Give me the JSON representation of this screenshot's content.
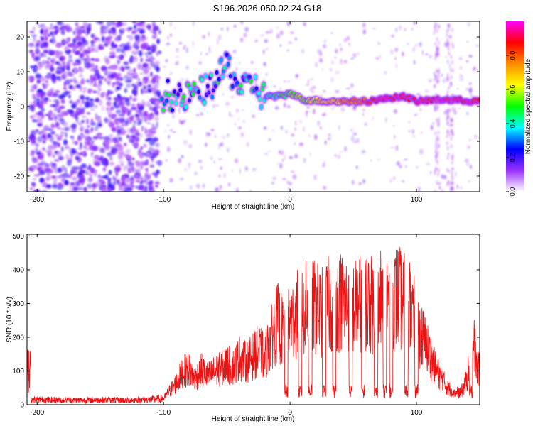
{
  "figure": {
    "title": "S196.2026.050.02.24.G18"
  },
  "chart_data": [
    {
      "type": "heatmap",
      "title": "S196.2026.050.02.24.G18",
      "xlabel": "Height of straight line (km)",
      "ylabel": "Frequency (Hz)",
      "xlim": [
        -208,
        150
      ],
      "ylim": [
        -24.5,
        24.5
      ],
      "x_ticks": [
        -200,
        -100,
        0,
        100
      ],
      "x_tick_labels": [
        "-200",
        "-100",
        "0",
        "100"
      ],
      "y_ticks": [
        -20,
        -10,
        0,
        10,
        20
      ],
      "y_tick_labels": [
        "-20",
        "-10",
        "0",
        "10",
        "20"
      ],
      "colorbar": {
        "label": "Normalized spectral amplitude",
        "range": [
          0,
          1
        ],
        "ticks": [
          0.0,
          0.2,
          0.4,
          0.6,
          0.8
        ],
        "tick_labels": [
          "0.0",
          "0.2",
          "0.4",
          "0.6",
          "0.8"
        ],
        "colors": [
          "#ffffff",
          "#9b30ff",
          "#0000ff",
          "#00ffff",
          "#00ff00",
          "#ffff00",
          "#ff8c00",
          "#ff0000",
          "#ff00ff"
        ]
      },
      "features": {
        "noise_region_x": [
          -205,
          -103
        ],
        "track": [
          {
            "x": -100,
            "y": 5
          },
          {
            "x": -95,
            "y": 3
          },
          {
            "x": -85,
            "y": 2
          },
          {
            "x": -75,
            "y": 4
          },
          {
            "x": -65,
            "y": 5
          },
          {
            "x": -55,
            "y": 9
          },
          {
            "x": -50,
            "y": 13
          },
          {
            "x": -45,
            "y": 8
          },
          {
            "x": -40,
            "y": 6
          },
          {
            "x": -35,
            "y": 5
          },
          {
            "x": -30,
            "y": 7
          },
          {
            "x": -22,
            "y": 3
          },
          {
            "x": -15,
            "y": 3
          },
          {
            "x": -5,
            "y": 3
          },
          {
            "x": 0,
            "y": 4
          },
          {
            "x": 10,
            "y": 2
          },
          {
            "x": 30,
            "y": 1.5
          },
          {
            "x": 60,
            "y": 1.5
          },
          {
            "x": 80,
            "y": 2.5
          },
          {
            "x": 90,
            "y": 3
          },
          {
            "x": 100,
            "y": 1.5
          },
          {
            "x": 120,
            "y": 2
          },
          {
            "x": 150,
            "y": 1.5
          }
        ]
      }
    },
    {
      "type": "line",
      "xlabel": "Height of straight line (km)",
      "ylabel": "SNR (10 * v/v)",
      "xlim": [
        -208,
        150
      ],
      "ylim": [
        0,
        505
      ],
      "x_ticks": [
        -200,
        -100,
        0,
        100
      ],
      "x_tick_labels": [
        "-200",
        "-100",
        "0",
        "100"
      ],
      "y_ticks": [
        0,
        100,
        200,
        300,
        400,
        500
      ],
      "y_tick_labels": [
        "0",
        "100",
        "200",
        "300",
        "400",
        "500"
      ],
      "series": [
        {
          "name": "SNR",
          "color": "#ee1111",
          "x": [
            -205,
            -190,
            -170,
            -150,
            -130,
            -110,
            -100,
            -95,
            -90,
            -85,
            -80,
            -75,
            -70,
            -65,
            -60,
            -55,
            -50,
            -45,
            -40,
            -35,
            -30,
            -25,
            -20,
            -15,
            -10,
            -5,
            0,
            5,
            10,
            15,
            20,
            25,
            30,
            35,
            40,
            45,
            50,
            55,
            60,
            65,
            70,
            75,
            80,
            85,
            90,
            95,
            100,
            105,
            110,
            115,
            120,
            125,
            130,
            135,
            140,
            145,
            148
          ],
          "y": [
            20,
            18,
            17,
            18,
            17,
            20,
            25,
            60,
            90,
            140,
            150,
            110,
            150,
            120,
            140,
            150,
            170,
            160,
            200,
            180,
            200,
            230,
            200,
            280,
            350,
            300,
            340,
            380,
            400,
            420,
            410,
            390,
            420,
            430,
            440,
            430,
            410,
            430,
            440,
            420,
            430,
            450,
            440,
            460,
            430,
            420,
            330,
            280,
            220,
            150,
            110,
            70,
            55,
            50,
            110,
            280,
            150
          ],
          "troughs_x": [
            -3,
            8,
            16,
            27,
            35,
            48,
            58,
            68,
            75,
            80,
            92,
            100,
            143
          ]
        }
      ]
    }
  ]
}
